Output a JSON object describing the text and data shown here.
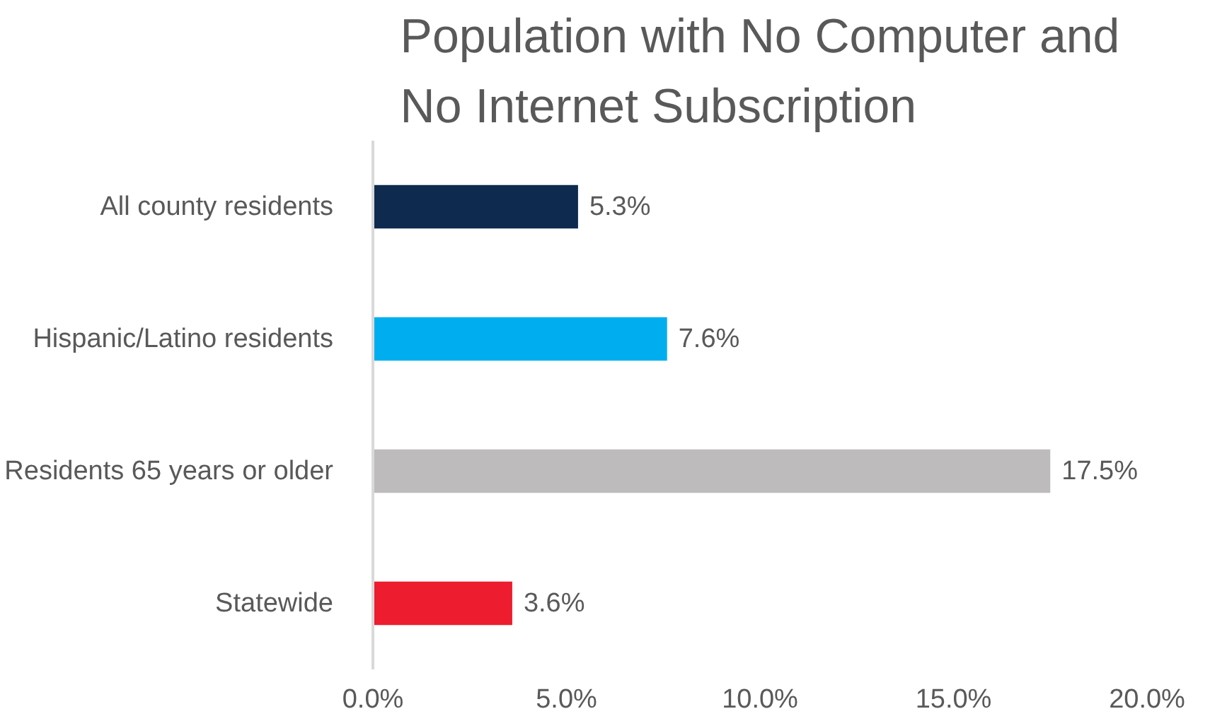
{
  "chart_data": {
    "type": "bar",
    "orientation": "horizontal",
    "title": "Population with No Computer and\nNo Internet Subscription",
    "categories": [
      "All county residents",
      "Hispanic/Latino residents",
      "Residents 65 years or older",
      "Statewide"
    ],
    "values": [
      5.3,
      7.6,
      17.5,
      3.6
    ],
    "colors": [
      "#0e2a4f",
      "#00aeef",
      "#bdbbbb",
      "#ed1c2e"
    ],
    "value_labels": [
      "5.3%",
      "7.6%",
      "17.5%",
      "3.6%"
    ],
    "xlim": [
      0,
      20
    ],
    "xticks": [
      {
        "value": 0,
        "label": "0.0%"
      },
      {
        "value": 5,
        "label": "5.0%"
      },
      {
        "value": 10,
        "label": "10.0%"
      },
      {
        "value": 15,
        "label": "15.0%"
      },
      {
        "value": 20,
        "label": "20.0%"
      }
    ],
    "grid": false
  }
}
